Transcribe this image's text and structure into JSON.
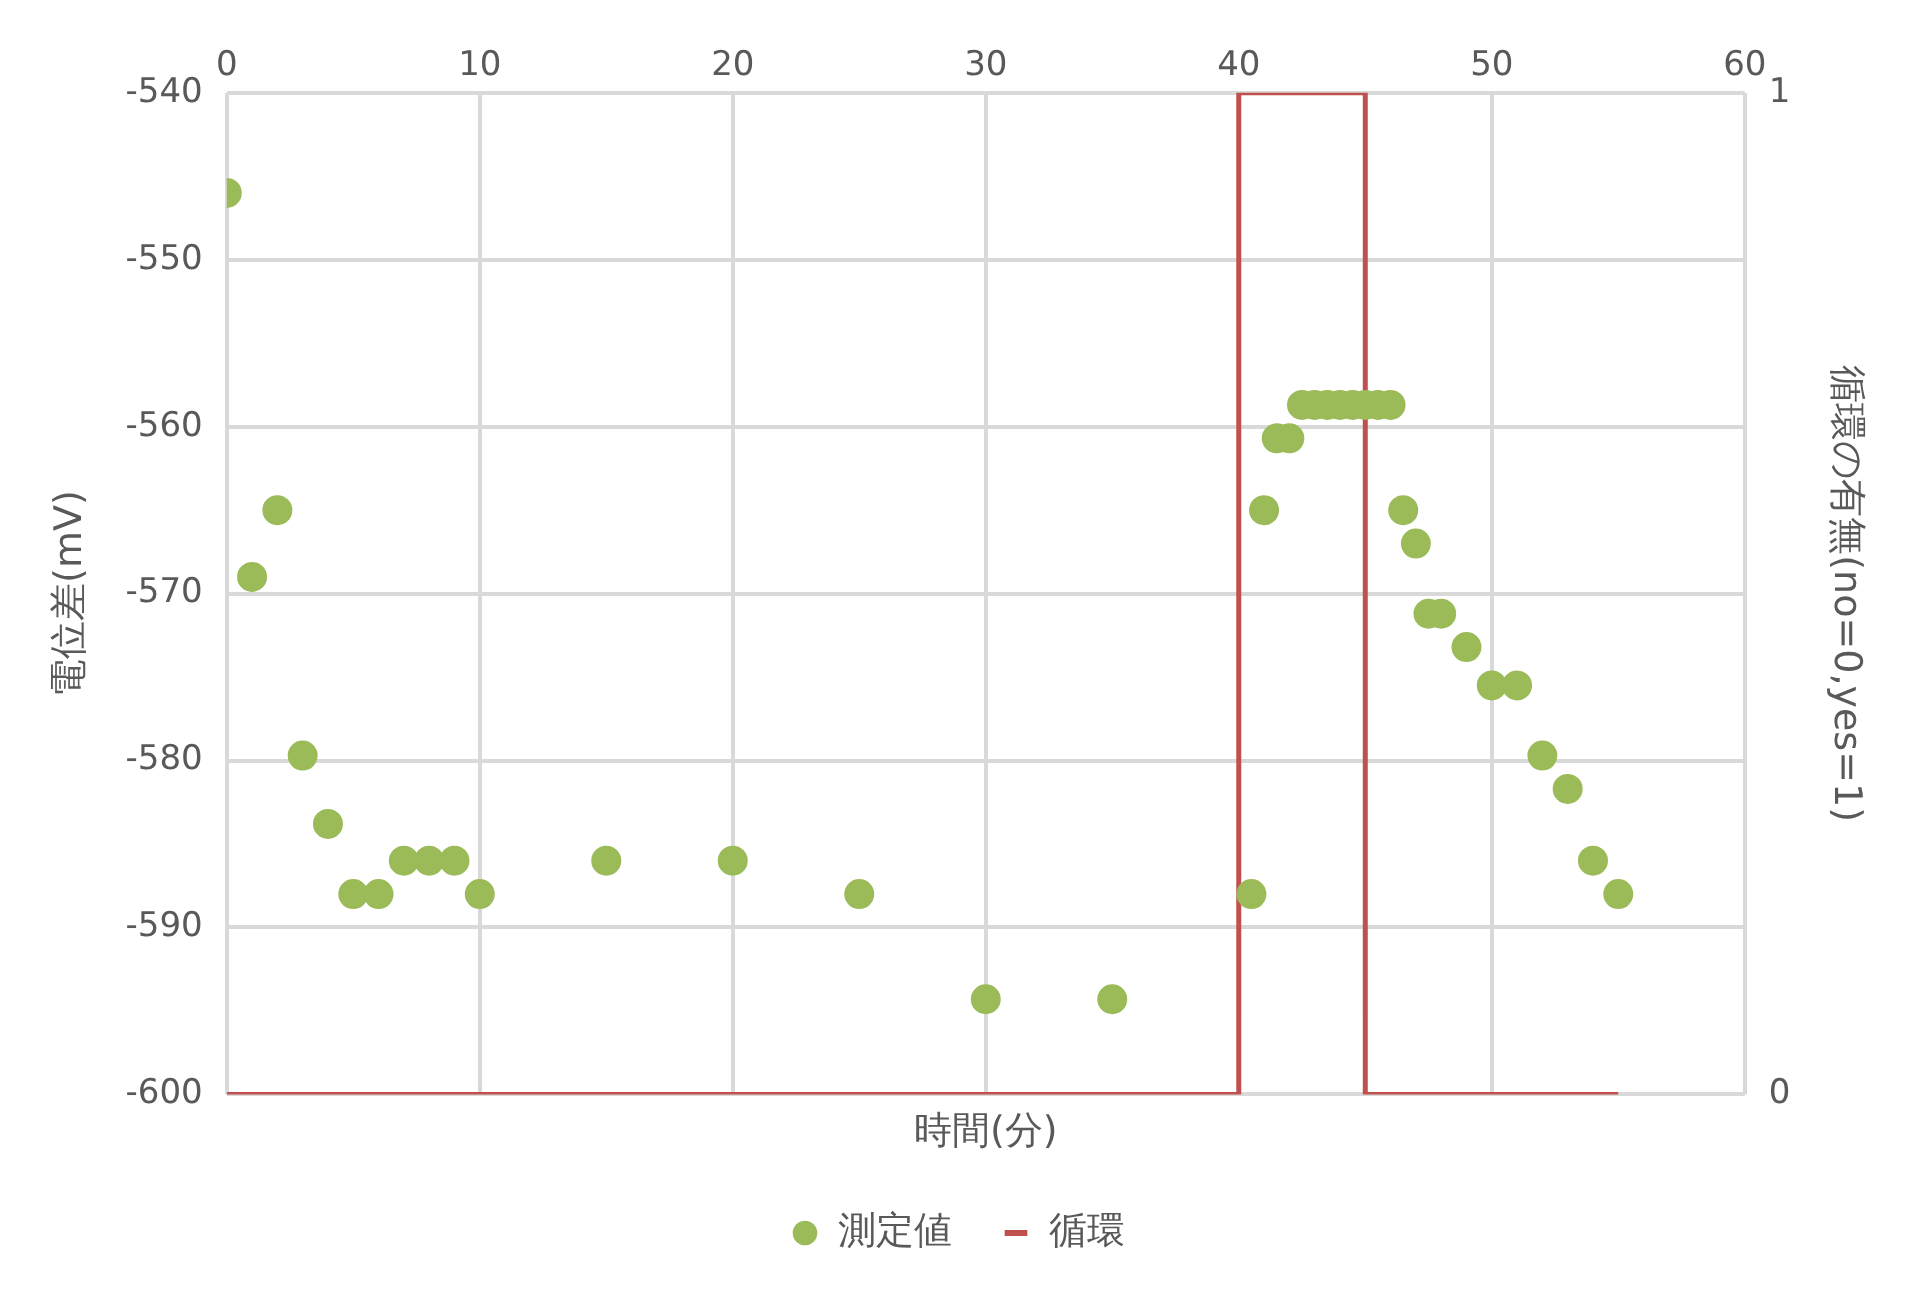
{
  "chart_data": {
    "type": "scatter",
    "xlabel": "時間(分)",
    "ylabel": "電位差(mV)",
    "y2label": "循環の有無(no=0,yes=1)",
    "xlim": [
      0,
      60
    ],
    "xticks": [
      0,
      10,
      20,
      30,
      40,
      50,
      60
    ],
    "ylim": [
      -600,
      -540
    ],
    "yticks": [
      -600,
      -590,
      -580,
      -570,
      -560,
      -550,
      -540
    ],
    "y2lim": [
      0,
      1
    ],
    "y2ticks": [
      0,
      1
    ],
    "grid": true,
    "legend": "bottom",
    "marker": "circle",
    "series": [
      {
        "name": "測定値",
        "type": "scatter",
        "color": "#9bbb59",
        "x": [
          0,
          1,
          2,
          3,
          4,
          5,
          6,
          7,
          8,
          9,
          10,
          15,
          20,
          25,
          30,
          35,
          40.5,
          41,
          41.5,
          42,
          42.5,
          43,
          43.5,
          44,
          44.5,
          45,
          45.5,
          46,
          46.5,
          47,
          47.5,
          48,
          49,
          50,
          51,
          52,
          53,
          54,
          55
        ],
        "values": [
          -546,
          -569,
          -565,
          -579.7,
          -583.8,
          -588,
          -588,
          -586,
          -586,
          -586,
          -588,
          -586,
          -586,
          -588,
          -594.3,
          -594.3,
          -588,
          -565,
          -560.7,
          -560.7,
          -558.7,
          -558.7,
          -558.7,
          -558.7,
          -558.7,
          -558.7,
          -558.7,
          -558.7,
          -565,
          -567,
          -571.2,
          -571.2,
          -573.2,
          -575.5,
          -575.5,
          -579.7,
          -581.7,
          -586,
          -588
        ]
      },
      {
        "name": "循環",
        "type": "line",
        "axis": "y2",
        "marker": "none",
        "line_style": "solid",
        "color": "#c0504d",
        "x": [
          0,
          40,
          40,
          45,
          45,
          55
        ],
        "values": [
          0,
          0,
          1,
          1,
          0,
          0
        ]
      }
    ]
  }
}
